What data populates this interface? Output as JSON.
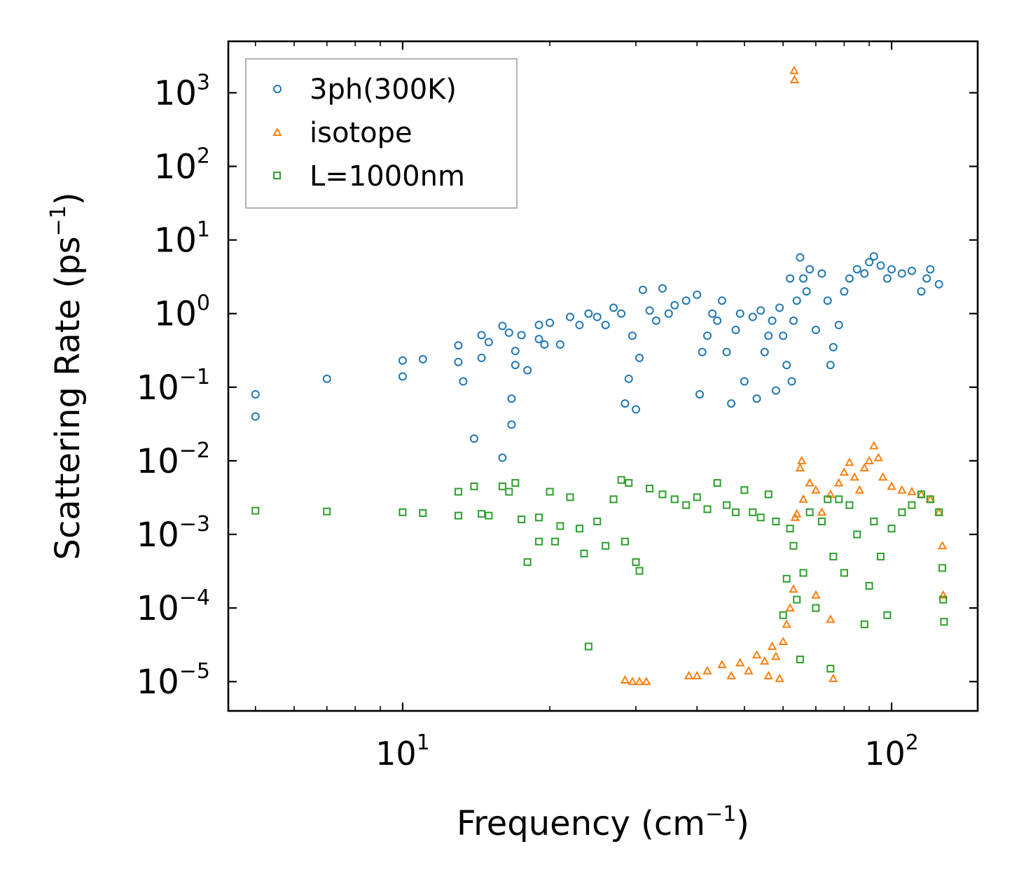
{
  "colors": {
    "3ph": "#1f77b4",
    "isotope": "#ff7f0e",
    "boundary": "#2ca02c"
  },
  "chart_data": {
    "type": "scatter",
    "xscale": "log",
    "yscale": "log",
    "xlim": [
      4.4,
      150
    ],
    "ylim": [
      4e-06,
      5000
    ],
    "xlabel": "Frequency (cm",
    "xlabel_sup": "−1",
    "xlabel_close": ")",
    "ylabel": "Scattering Rate (ps",
    "ylabel_sup": "−1",
    "ylabel_close": ")",
    "xticks": [
      {
        "value": 10,
        "base": "10",
        "exp": "1"
      },
      {
        "value": 100,
        "base": "10",
        "exp": "2"
      }
    ],
    "yticks": [
      {
        "value": 1000,
        "base": "10",
        "exp": "3"
      },
      {
        "value": 100,
        "base": "10",
        "exp": "2"
      },
      {
        "value": 10,
        "base": "10",
        "exp": "1"
      },
      {
        "value": 1,
        "base": "10",
        "exp": "0"
      },
      {
        "value": 0.1,
        "base": "10",
        "exp": "−1"
      },
      {
        "value": 0.01,
        "base": "10",
        "exp": "−2"
      },
      {
        "value": 0.001,
        "base": "10",
        "exp": "−3"
      },
      {
        "value": 0.0001,
        "base": "10",
        "exp": "−4"
      },
      {
        "value": 1e-05,
        "base": "10",
        "exp": "−5"
      }
    ],
    "legend": {
      "placement": "top-left"
    },
    "series": [
      {
        "name": "3ph(300K)",
        "marker": "circle",
        "color": "#1f77b4",
        "points": [
          [
            5.0,
            0.08
          ],
          [
            5.0,
            0.04
          ],
          [
            7.0,
            0.13
          ],
          [
            10.0,
            0.23
          ],
          [
            10.0,
            0.14
          ],
          [
            11.0,
            0.24
          ],
          [
            13.0,
            0.37
          ],
          [
            13.0,
            0.22
          ],
          [
            13.3,
            0.12
          ],
          [
            14.0,
            0.02
          ],
          [
            14.5,
            0.51
          ],
          [
            14.5,
            0.25
          ],
          [
            15.0,
            0.41
          ],
          [
            16.0,
            0.68
          ],
          [
            16.0,
            0.011
          ],
          [
            16.5,
            0.55
          ],
          [
            16.7,
            0.07
          ],
          [
            16.7,
            0.031
          ],
          [
            17.0,
            0.31
          ],
          [
            17.0,
            0.2
          ],
          [
            17.5,
            0.51
          ],
          [
            18.0,
            0.17
          ],
          [
            19.0,
            0.7
          ],
          [
            19.0,
            0.45
          ],
          [
            19.5,
            0.38
          ],
          [
            20.0,
            0.75
          ],
          [
            21.0,
            0.38
          ],
          [
            22.0,
            0.9
          ],
          [
            23.0,
            0.7
          ],
          [
            24.0,
            1.0
          ],
          [
            25.0,
            0.9
          ],
          [
            26.0,
            0.7
          ],
          [
            27.0,
            1.2
          ],
          [
            28.0,
            1.0
          ],
          [
            28.5,
            0.06
          ],
          [
            29.0,
            0.13
          ],
          [
            29.5,
            0.5
          ],
          [
            30.0,
            0.05
          ],
          [
            30.5,
            0.25
          ],
          [
            31.0,
            2.1
          ],
          [
            32.0,
            1.1
          ],
          [
            33.0,
            0.8
          ],
          [
            34.0,
            2.2
          ],
          [
            35.0,
            1.0
          ],
          [
            36.0,
            1.3
          ],
          [
            38.0,
            1.5
          ],
          [
            40.0,
            1.8
          ],
          [
            40.5,
            0.08
          ],
          [
            41.0,
            0.3
          ],
          [
            42.0,
            0.5
          ],
          [
            43.0,
            1.0
          ],
          [
            44.0,
            0.8
          ],
          [
            45.0,
            1.5
          ],
          [
            46.0,
            0.3
          ],
          [
            47.0,
            0.06
          ],
          [
            48.0,
            0.6
          ],
          [
            49.0,
            1.0
          ],
          [
            50.0,
            0.12
          ],
          [
            52.0,
            0.9
          ],
          [
            53.0,
            0.07
          ],
          [
            54.0,
            1.1
          ],
          [
            55.0,
            0.3
          ],
          [
            56.0,
            0.5
          ],
          [
            57.0,
            0.8
          ],
          [
            58.0,
            0.09
          ],
          [
            59.0,
            1.2
          ],
          [
            60.0,
            0.5
          ],
          [
            61.0,
            0.2
          ],
          [
            62.0,
            3.0
          ],
          [
            62.5,
            0.12
          ],
          [
            63.0,
            0.8
          ],
          [
            64.0,
            1.5
          ],
          [
            65.0,
            5.8
          ],
          [
            66.0,
            3.0
          ],
          [
            67.0,
            2.0
          ],
          [
            68.0,
            4.0
          ],
          [
            70.0,
            0.6
          ],
          [
            72.0,
            3.5
          ],
          [
            74.0,
            1.5
          ],
          [
            75.0,
            0.2
          ],
          [
            76.0,
            0.35
          ],
          [
            78.0,
            0.7
          ],
          [
            80.0,
            2.0
          ],
          [
            82.0,
            3.0
          ],
          [
            85.0,
            4.0
          ],
          [
            88.0,
            3.5
          ],
          [
            90.0,
            5.0
          ],
          [
            92.0,
            6.0
          ],
          [
            95.0,
            4.5
          ],
          [
            98.0,
            3.0
          ],
          [
            100.0,
            4.0
          ],
          [
            105.0,
            3.5
          ],
          [
            110.0,
            3.8
          ],
          [
            115.0,
            2.0
          ],
          [
            118.0,
            3.0
          ],
          [
            120.0,
            4.0
          ],
          [
            125.0,
            2.5
          ]
        ]
      },
      {
        "name": "isotope",
        "marker": "triangle",
        "color": "#ff7f0e",
        "points": [
          [
            28.5,
            1.05e-05
          ],
          [
            29.5,
            1e-05
          ],
          [
            30.5,
            1e-05
          ],
          [
            31.5,
            1e-05
          ],
          [
            38.5,
            1.2e-05
          ],
          [
            40.0,
            1.2e-05
          ],
          [
            42.0,
            1.4e-05
          ],
          [
            45.0,
            1.7e-05
          ],
          [
            47.0,
            1.2e-05
          ],
          [
            49.0,
            1.8e-05
          ],
          [
            51.0,
            1.4e-05
          ],
          [
            53.0,
            2.3e-05
          ],
          [
            55.0,
            1.9e-05
          ],
          [
            56.0,
            1.2e-05
          ],
          [
            57.0,
            3e-05
          ],
          [
            58.0,
            2.2e-05
          ],
          [
            59.0,
            1.1e-05
          ],
          [
            60.0,
            3.5e-05
          ],
          [
            61.0,
            6e-05
          ],
          [
            62.0,
            0.0001
          ],
          [
            63.0,
            0.00018
          ],
          [
            63.5,
            0.0017
          ],
          [
            64.0,
            0.0019
          ],
          [
            65.0,
            0.008
          ],
          [
            65.5,
            0.01
          ],
          [
            66.0,
            0.003
          ],
          [
            68.0,
            0.005
          ],
          [
            70.0,
            0.004
          ],
          [
            72.0,
            0.002
          ],
          [
            75.0,
            0.0035
          ],
          [
            76.0,
            1.1e-05
          ],
          [
            78.0,
            0.005
          ],
          [
            80.0,
            0.007
          ],
          [
            82.0,
            0.0095
          ],
          [
            84.0,
            0.006
          ],
          [
            86.0,
            0.004
          ],
          [
            88.0,
            0.008
          ],
          [
            90.0,
            0.01
          ],
          [
            92.0,
            0.016
          ],
          [
            94.0,
            0.011
          ],
          [
            96.0,
            0.006
          ],
          [
            100.0,
            0.0045
          ],
          [
            105.0,
            0.004
          ],
          [
            110.0,
            0.0038
          ],
          [
            115.0,
            0.0035
          ],
          [
            120.0,
            0.003
          ],
          [
            125.0,
            0.002
          ],
          [
            127.0,
            0.0007
          ],
          [
            127.5,
            0.00015
          ],
          [
            63.2,
            2000
          ],
          [
            63.3,
            1500
          ],
          [
            70.0,
            0.00015
          ],
          [
            75.0,
            7e-05
          ]
        ]
      },
      {
        "name": "L=1000nm",
        "marker": "square",
        "color": "#2ca02c",
        "points": [
          [
            5.0,
            0.0021
          ],
          [
            7.0,
            0.00205
          ],
          [
            10.0,
            0.002
          ],
          [
            11.0,
            0.00195
          ],
          [
            13.0,
            0.0018
          ],
          [
            13.0,
            0.0038
          ],
          [
            14.0,
            0.0045
          ],
          [
            14.5,
            0.0019
          ],
          [
            15.0,
            0.0018
          ],
          [
            16.0,
            0.0045
          ],
          [
            16.5,
            0.0038
          ],
          [
            17.0,
            0.005
          ],
          [
            17.5,
            0.0016
          ],
          [
            18.0,
            0.00042
          ],
          [
            19.0,
            0.0017
          ],
          [
            19.0,
            0.0008
          ],
          [
            20.0,
            0.0038
          ],
          [
            20.5,
            0.0008
          ],
          [
            21.0,
            0.0013
          ],
          [
            22.0,
            0.0032
          ],
          [
            23.0,
            0.0012
          ],
          [
            23.5,
            0.00055
          ],
          [
            24.0,
            3e-05
          ],
          [
            25.0,
            0.0015
          ],
          [
            26.0,
            0.0007
          ],
          [
            27.0,
            0.003
          ],
          [
            28.0,
            0.0055
          ],
          [
            28.5,
            0.0008
          ],
          [
            29.0,
            0.005
          ],
          [
            30.0,
            0.00042
          ],
          [
            30.5,
            0.00032
          ],
          [
            32.0,
            0.0042
          ],
          [
            34.0,
            0.0035
          ],
          [
            36.0,
            0.003
          ],
          [
            38.0,
            0.0025
          ],
          [
            40.0,
            0.0032
          ],
          [
            42.0,
            0.0022
          ],
          [
            44.0,
            0.005
          ],
          [
            46.0,
            0.0025
          ],
          [
            48.0,
            0.002
          ],
          [
            50.0,
            0.004
          ],
          [
            52.0,
            0.002
          ],
          [
            54.0,
            0.0017
          ],
          [
            56.0,
            0.0035
          ],
          [
            58.0,
            0.0015
          ],
          [
            60.0,
            8e-05
          ],
          [
            61.0,
            0.00025
          ],
          [
            62.0,
            0.0012
          ],
          [
            63.0,
            0.0007
          ],
          [
            64.0,
            0.00013
          ],
          [
            65.0,
            2e-05
          ],
          [
            66.0,
            0.0003
          ],
          [
            68.0,
            0.002
          ],
          [
            70.0,
            0.0001
          ],
          [
            72.0,
            0.0015
          ],
          [
            74.0,
            0.003
          ],
          [
            75.0,
            1.5e-05
          ],
          [
            76.0,
            0.0005
          ],
          [
            78.0,
            0.003
          ],
          [
            80.0,
            0.0003
          ],
          [
            82.0,
            0.0025
          ],
          [
            85.0,
            0.001
          ],
          [
            88.0,
            6e-05
          ],
          [
            90.0,
            0.0002
          ],
          [
            92.0,
            0.0015
          ],
          [
            95.0,
            0.0005
          ],
          [
            98.0,
            8e-05
          ],
          [
            100.0,
            0.0012
          ],
          [
            105.0,
            0.002
          ],
          [
            110.0,
            0.0025
          ],
          [
            115.0,
            0.0035
          ],
          [
            120.0,
            0.003
          ],
          [
            125.0,
            0.002
          ],
          [
            127.0,
            0.00035
          ],
          [
            127.5,
            0.00013
          ],
          [
            128.0,
            6.5e-05
          ]
        ]
      }
    ]
  }
}
